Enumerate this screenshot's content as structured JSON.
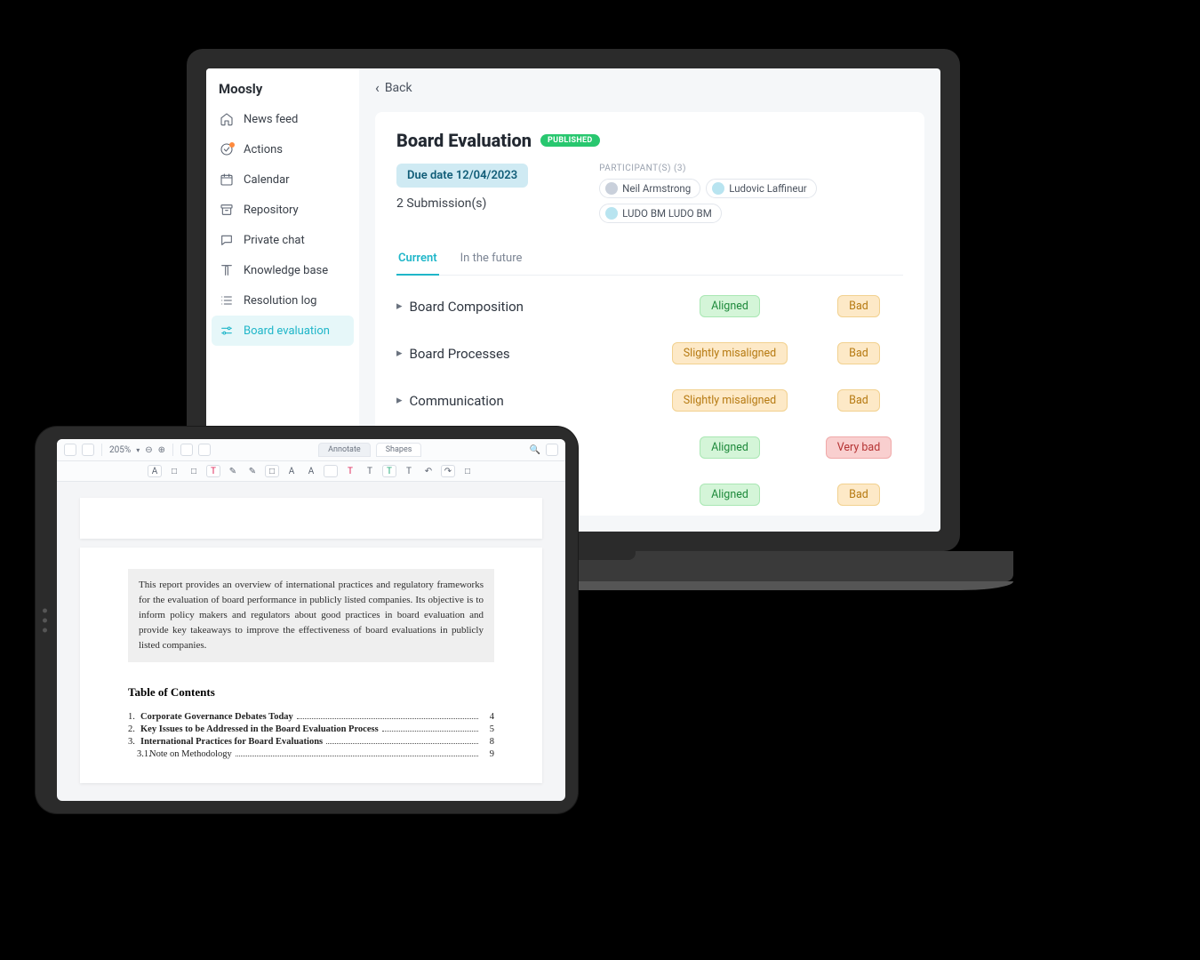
{
  "laptop_app": {
    "brand": "Moosly",
    "nav": [
      {
        "label": "News feed",
        "icon": "home",
        "active": false,
        "badge": false
      },
      {
        "label": "Actions",
        "icon": "check",
        "active": false,
        "badge": true
      },
      {
        "label": "Calendar",
        "icon": "calendar",
        "active": false,
        "badge": false
      },
      {
        "label": "Repository",
        "icon": "archive",
        "active": false,
        "badge": false
      },
      {
        "label": "Private chat",
        "icon": "chat",
        "active": false,
        "badge": false
      },
      {
        "label": "Knowledge base",
        "icon": "book",
        "active": false,
        "badge": false
      },
      {
        "label": "Resolution log",
        "icon": "list",
        "active": false,
        "badge": false
      },
      {
        "label": "Board evaluation",
        "icon": "sliders",
        "active": true,
        "badge": false
      }
    ],
    "back_label": "Back",
    "title": "Board Evaluation",
    "status_badge": "PUBLISHED",
    "due_date_label": "Due date 12/04/2023",
    "submissions_label": "2 Submission(s)",
    "participants_label": "PARTICIPANT(S) (3)",
    "participants": [
      {
        "name": "Neil Armstrong",
        "avatar_color": "#c9d0db"
      },
      {
        "name": "Ludovic Laffineur",
        "avatar_color": "#b8e4f0"
      },
      {
        "name": "LUDO BM LUDO BM",
        "avatar_color": "#b8e4f0"
      }
    ],
    "tabs": [
      {
        "label": "Current",
        "active": true
      },
      {
        "label": "In the future",
        "active": false
      }
    ],
    "evaluation_rows": [
      {
        "label": "Board Composition",
        "alignment": "Aligned",
        "alignment_class": "aligned",
        "rating": "Bad",
        "rating_class": "bad",
        "has_label": true
      },
      {
        "label": "Board Processes",
        "alignment": "Slightly misaligned",
        "alignment_class": "slight",
        "rating": "Bad",
        "rating_class": "bad",
        "has_label": true
      },
      {
        "label": "Communication",
        "alignment": "Slightly misaligned",
        "alignment_class": "slight",
        "rating": "Bad",
        "rating_class": "bad",
        "has_label": true
      },
      {
        "label": "",
        "alignment": "Aligned",
        "alignment_class": "aligned",
        "rating": "Very bad",
        "rating_class": "verybad",
        "has_label": false
      },
      {
        "label": "",
        "alignment": "Aligned",
        "alignment_class": "aligned",
        "rating": "Bad",
        "rating_class": "bad",
        "has_label": false
      }
    ],
    "colors": {
      "accent": "#1fb6c9",
      "pill_aligned_bg": "#d4f5d8",
      "pill_aligned_fg": "#1f8a3c",
      "pill_slight_bg": "#fde9c7",
      "pill_slight_fg": "#b67a12",
      "pill_bad_bg": "#fde9c7",
      "pill_bad_fg": "#b67a12",
      "pill_verybad_bg": "#f9cfcf",
      "pill_verybad_fg": "#b63535",
      "due_chip_bg": "#cfeaf3",
      "due_chip_fg": "#0f5c77",
      "publish_bg": "#28c76f"
    }
  },
  "tablet_app": {
    "zoom_label": "205%",
    "top_tabs": [
      {
        "label": "Annotate",
        "active": true
      },
      {
        "label": "Shapes",
        "active": false
      }
    ],
    "abstract_text": "This report provides an overview of international practices and regulatory frameworks for the evaluation of board performance in publicly listed companies. Its objective is to inform policy makers and regulators about good practices in board evaluation and provide key takeaways to improve the effectiveness of board evaluations in publicly listed companies.",
    "toc_title": "Table of Contents",
    "toc": [
      {
        "num": "1.",
        "title": "Corporate Governance Debates Today",
        "page": "4",
        "sub": false
      },
      {
        "num": "2.",
        "title": "Key Issues to be Addressed in the Board Evaluation Process",
        "page": "5",
        "sub": false
      },
      {
        "num": "3.",
        "title": "International Practices for Board Evaluations",
        "page": "8",
        "sub": false
      },
      {
        "num": "3.1.",
        "title": "Note on Methodology",
        "page": "9",
        "sub": true
      }
    ],
    "format_buttons": [
      "A",
      "□",
      "□",
      "T",
      "✎",
      "✎",
      "□",
      "A",
      "A",
      " ",
      "T",
      "T",
      "T",
      "T",
      "↶",
      "↷",
      "□"
    ]
  }
}
